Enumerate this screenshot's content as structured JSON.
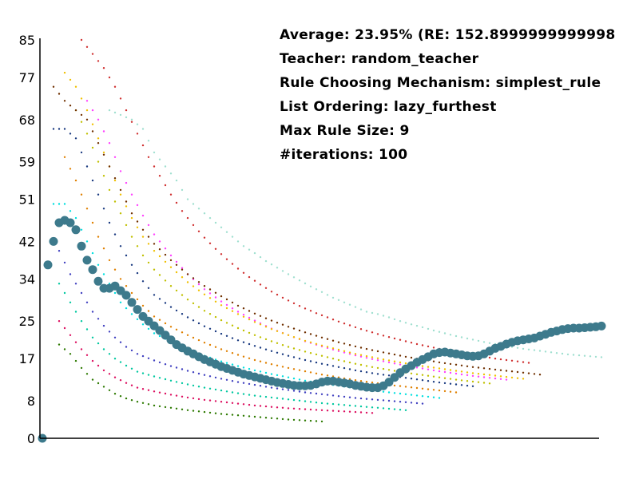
{
  "chart_data": {
    "type": "scatter",
    "title": "",
    "xlabel": "",
    "ylabel": "",
    "ylim": [
      0,
      85
    ],
    "xlim": [
      0,
      100
    ],
    "y_ticks": [
      "0",
      "8",
      "17",
      "25",
      "34",
      "42",
      "51",
      "59",
      "68",
      "77",
      "85"
    ],
    "info_lines": [
      "Average: 23.95% (RE: 152.8999999999998",
      "Teacher: random_teacher",
      "Rule Choosing Mechanism: simplest_rule",
      "List Ordering: lazy_furthest",
      "Max Rule Size: 9",
      "#iterations: 100"
    ],
    "main_series": {
      "color": "#3d7a8c",
      "x": [
        0,
        1,
        2,
        3,
        4,
        5,
        6,
        7,
        8,
        9,
        10,
        11,
        12,
        13,
        14,
        15,
        16,
        17,
        18,
        19,
        20,
        21,
        22,
        23,
        24,
        25,
        26,
        27,
        28,
        29,
        30,
        31,
        32,
        33,
        34,
        35,
        36,
        37,
        38,
        39,
        40,
        41,
        42,
        43,
        44,
        45,
        46,
        47,
        48,
        49,
        50,
        51,
        52,
        53,
        54,
        55,
        56,
        57,
        58,
        59,
        60,
        61,
        62,
        63,
        64,
        65,
        66,
        67,
        68,
        69,
        70,
        71,
        72,
        73,
        74,
        75,
        76,
        77,
        78,
        79,
        80,
        81,
        82,
        83,
        84,
        85,
        86,
        87,
        88,
        89,
        90,
        91,
        92,
        93,
        94,
        95,
        96,
        97,
        98,
        99,
        100
      ],
      "y": [
        0,
        37,
        42,
        46,
        46.5,
        46,
        44.5,
        41,
        38,
        36,
        33.5,
        32,
        32,
        32.5,
        31.5,
        30.5,
        29,
        27.5,
        26,
        25,
        24,
        23,
        22,
        21,
        20,
        19.3,
        18.6,
        18,
        17.4,
        16.8,
        16.3,
        15.8,
        15.3,
        14.9,
        14.5,
        14.1,
        13.7,
        13.4,
        13.1,
        12.8,
        12.5,
        12.2,
        11.9,
        11.7,
        11.5,
        11.3,
        11.2,
        11.2,
        11.3,
        11.6,
        12,
        12.2,
        12.2,
        12,
        11.8,
        11.6,
        11.3,
        11.1,
        10.9,
        10.8,
        10.8,
        11.2,
        12,
        13,
        14,
        14.8,
        15.5,
        16.2,
        16.8,
        17.4,
        18,
        18.3,
        18.4,
        18.2,
        18,
        17.8,
        17.6,
        17.5,
        17.6,
        18,
        18.6,
        19.2,
        19.6,
        20.1,
        20.5,
        20.8,
        21,
        21.2,
        21.4,
        21.8,
        22.2,
        22.6,
        22.9,
        23.2,
        23.4,
        23.5,
        23.5,
        23.6,
        23.7,
        23.8,
        23.95
      ]
    },
    "background_series": [
      {
        "color": "#2d7a00",
        "x": [
          3,
          5,
          7,
          9,
          11,
          13,
          15,
          17,
          20,
          23,
          26,
          29,
          32,
          35,
          38,
          41,
          44,
          47,
          50
        ],
        "y": [
          20,
          18,
          15,
          12.5,
          11,
          9.5,
          8.5,
          7.8,
          7,
          6.5,
          6,
          5.6,
          5.2,
          4.9,
          4.6,
          4.3,
          4,
          3.8,
          3.6
        ]
      },
      {
        "color": "#dd1060",
        "x": [
          3,
          5,
          7,
          9,
          11,
          13,
          15,
          17,
          20,
          23,
          26,
          29,
          32,
          35,
          38,
          41,
          44,
          47,
          50,
          53,
          56,
          59
        ],
        "y": [
          25,
          22,
          19,
          16.5,
          14.5,
          13,
          11.8,
          10.8,
          10,
          9.3,
          8.7,
          8.2,
          7.8,
          7.4,
          7,
          6.7,
          6.4,
          6.2,
          6,
          5.8,
          5.6,
          5.4
        ]
      },
      {
        "color": "#00c8a0",
        "x": [
          3,
          5,
          7,
          9,
          11,
          13,
          15,
          17,
          20,
          23,
          26,
          29,
          32,
          35,
          38,
          41,
          44,
          47,
          50,
          53,
          56,
          59,
          62,
          65
        ],
        "y": [
          33,
          29,
          25,
          21.5,
          19,
          17,
          15.5,
          14.2,
          13.2,
          12.3,
          11.5,
          10.8,
          10.2,
          9.6,
          9.1,
          8.7,
          8.3,
          7.9,
          7.5,
          7.2,
          6.9,
          6.6,
          6.3,
          6
        ]
      },
      {
        "color": "#4040c0",
        "x": [
          3,
          5,
          7,
          9,
          11,
          13,
          15,
          17,
          20,
          23,
          26,
          29,
          32,
          35,
          38,
          41,
          44,
          47,
          50,
          53,
          56,
          59,
          62,
          65,
          68
        ],
        "y": [
          40,
          35,
          31,
          27,
          24,
          21.5,
          19.5,
          18,
          16.6,
          15.4,
          14.4,
          13.5,
          12.7,
          12,
          11.4,
          10.8,
          10.3,
          9.8,
          9.4,
          9,
          8.6,
          8.3,
          8,
          7.7,
          7.4
        ]
      },
      {
        "color": "#00e0e0",
        "x": [
          2,
          4,
          6,
          8,
          10,
          12,
          14,
          16,
          18,
          20,
          23,
          26,
          29,
          32,
          35,
          38,
          41,
          44,
          47,
          50,
          53,
          56,
          59,
          62,
          65,
          68,
          71
        ],
        "y": [
          50,
          50,
          47,
          42,
          37,
          33,
          29,
          26.5,
          24.3,
          22.4,
          20.6,
          19,
          17.6,
          16.4,
          15.4,
          14.5,
          13.7,
          13,
          12.3,
          11.7,
          11.2,
          10.7,
          10.2,
          9.8,
          9.4,
          9,
          8.6
        ]
      },
      {
        "color": "#e08000",
        "x": [
          4,
          6,
          8,
          10,
          12,
          14,
          16,
          18,
          20,
          23,
          26,
          29,
          32,
          35,
          38,
          41,
          44,
          47,
          50,
          53,
          56,
          59,
          62,
          65,
          68,
          71,
          74
        ],
        "y": [
          60,
          55,
          49,
          43,
          38,
          34,
          31,
          28.3,
          26,
          23.8,
          22,
          20.4,
          19,
          17.8,
          16.7,
          15.8,
          15,
          14.3,
          13.6,
          13,
          12.4,
          11.9,
          11.4,
          11,
          10.6,
          10.2,
          9.8
        ]
      },
      {
        "color": "#1a3a80",
        "x": [
          2,
          4,
          6,
          8,
          10,
          12,
          14,
          16,
          18,
          20,
          23,
          26,
          29,
          32,
          35,
          38,
          41,
          44,
          47,
          50,
          53,
          56,
          59,
          62,
          65,
          68,
          71,
          74,
          77
        ],
        "y": [
          66,
          66,
          64,
          58,
          52,
          46,
          41,
          37,
          33.5,
          30.6,
          28,
          25.8,
          23.9,
          22.3,
          20.9,
          19.7,
          18.6,
          17.6,
          16.7,
          15.9,
          15.2,
          14.5,
          13.9,
          13.4,
          12.9,
          12.4,
          11.9,
          11.5,
          11.1
        ]
      },
      {
        "color": "#c0c000",
        "x": [
          6,
          8,
          10,
          12,
          14,
          16,
          18,
          20,
          23,
          26,
          29,
          32,
          35,
          38,
          41,
          44,
          47,
          50,
          53,
          56,
          59,
          62,
          65,
          68,
          71,
          74,
          77,
          80
        ],
        "y": [
          70,
          65,
          59,
          53,
          48,
          43,
          39,
          36,
          32.5,
          29.6,
          27.2,
          25.2,
          23.5,
          22,
          20.7,
          19.5,
          18.5,
          17.6,
          16.7,
          15.9,
          15.2,
          14.6,
          14,
          13.5,
          13,
          12.5,
          12.1,
          11.7
        ]
      },
      {
        "color": "#ff40ff",
        "x": [
          8,
          10,
          12,
          14,
          16,
          18,
          20,
          23,
          26,
          29,
          32,
          35,
          38,
          41,
          44,
          47,
          50,
          53,
          56,
          59,
          62,
          65,
          68,
          71,
          74,
          77,
          80,
          83
        ],
        "y": [
          72,
          68,
          63,
          57,
          52,
          47.5,
          43.5,
          39,
          35,
          31.8,
          29.2,
          27,
          25.1,
          23.4,
          22,
          20.7,
          19.6,
          18.6,
          17.7,
          16.9,
          16.2,
          15.5,
          14.9,
          14.3,
          13.8,
          13.3,
          12.9,
          12.5
        ]
      },
      {
        "color": "#f0c000",
        "x": [
          4,
          6,
          8,
          10,
          12,
          14,
          16,
          18,
          20,
          23,
          26,
          29,
          32,
          35,
          38,
          41,
          44,
          47,
          50,
          53,
          56,
          59,
          62,
          65,
          68,
          71,
          74,
          77,
          80,
          83,
          86
        ],
        "y": [
          78,
          75,
          70,
          64,
          58,
          52,
          47,
          43,
          40,
          36.5,
          33.3,
          30.7,
          28.4,
          26.5,
          24.8,
          23.3,
          22,
          20.8,
          19.8,
          18.9,
          18,
          17.3,
          16.6,
          16,
          15.4,
          14.9,
          14.4,
          13.9,
          13.5,
          13.1,
          12.7
        ]
      },
      {
        "color": "#703000",
        "x": [
          2,
          4,
          6,
          8,
          10,
          12,
          14,
          16,
          18,
          20,
          23,
          26,
          29,
          32,
          35,
          38,
          41,
          44,
          47,
          50,
          53,
          56,
          59,
          62,
          65,
          68,
          71,
          74,
          77,
          80,
          83,
          86,
          89
        ],
        "y": [
          75,
          72,
          70,
          68,
          63,
          58,
          53,
          48,
          44.5,
          41.5,
          38,
          35,
          32.5,
          30.3,
          28.3,
          26.6,
          25.1,
          23.8,
          22.6,
          21.5,
          20.5,
          19.6,
          18.8,
          18.1,
          17.4,
          16.8,
          16.2,
          15.7,
          15.2,
          14.8,
          14.4,
          14,
          13.6
        ]
      },
      {
        "color": "#a0e0d0",
        "x": [
          12,
          14,
          16,
          18,
          20,
          22,
          24,
          26,
          28,
          30,
          32,
          34,
          36,
          38,
          40,
          42,
          44,
          46,
          48,
          50,
          52,
          54,
          56,
          58,
          60,
          62,
          64,
          66,
          68,
          70,
          72,
          74,
          76,
          78,
          80,
          82,
          84,
          86,
          88,
          90,
          92,
          94,
          96,
          98,
          100
        ],
        "y": [
          70,
          69,
          68,
          66,
          61,
          58,
          55,
          51,
          49,
          47,
          45,
          43,
          41,
          39.5,
          37.8,
          36.4,
          35,
          33.7,
          32.4,
          31.2,
          30,
          29,
          28,
          27,
          26.5,
          25.8,
          25,
          24.3,
          23.7,
          23,
          22.4,
          21.8,
          21.3,
          20.8,
          20.3,
          19.9,
          19.5,
          19.1,
          18.8,
          18.5,
          18.2,
          17.9,
          17.7,
          17.5,
          17.3
        ]
      },
      {
        "color": "#d03030",
        "x": [
          7,
          9,
          11,
          13,
          15,
          17,
          19,
          21,
          23,
          25,
          27,
          29,
          31,
          33,
          35,
          37,
          39,
          41,
          43,
          45,
          47,
          49,
          51,
          53,
          55,
          57,
          59,
          61,
          63,
          65,
          67,
          69,
          71,
          73,
          75,
          77,
          79,
          81,
          83,
          85,
          87
        ],
        "y": [
          85,
          82,
          79,
          75,
          70,
          65,
          60,
          56,
          52,
          48.5,
          45.5,
          42.8,
          40.4,
          38.2,
          36.2,
          34.4,
          32.8,
          31.3,
          30,
          28.8,
          27.7,
          26.7,
          25.8,
          24.9,
          24.1,
          23.3,
          22.6,
          21.9,
          21.3,
          20.7,
          20.1,
          19.6,
          19.1,
          18.6,
          18.2,
          17.8,
          17.4,
          17,
          16.7,
          16.4,
          16.1
        ]
      }
    ]
  }
}
